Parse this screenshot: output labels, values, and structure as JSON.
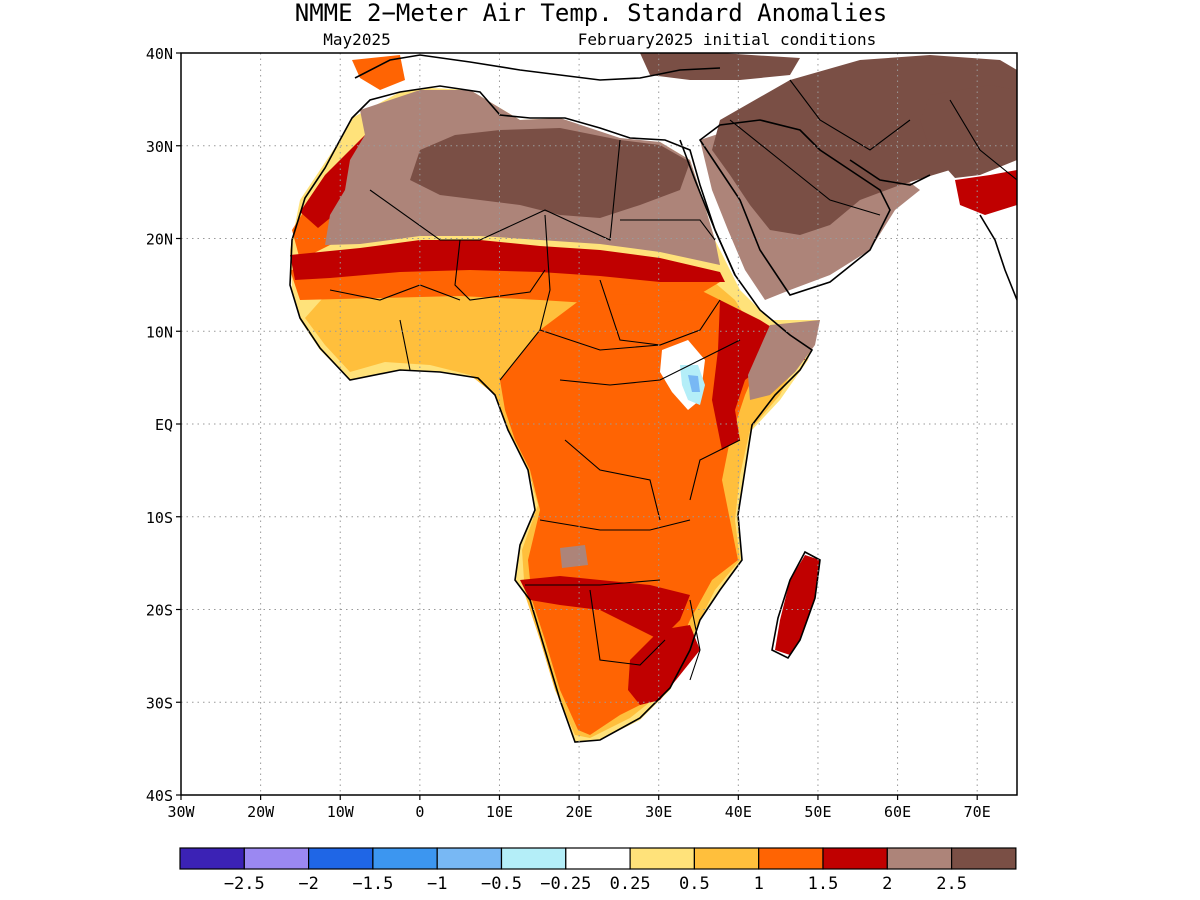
{
  "title": "NMME 2−Meter Air Temp. Standard Anomalies",
  "valid_month": "May2025",
  "initial_conditions": "February2025 initial conditions",
  "map": {
    "lon_range": [
      -30,
      75
    ],
    "lat_range": [
      -40,
      40
    ],
    "lat_labels": [
      "40N",
      "30N",
      "20N",
      "10N",
      "EQ",
      "10S",
      "20S",
      "30S",
      "40S"
    ],
    "lon_labels": [
      "30W",
      "20W",
      "10W",
      "0",
      "10E",
      "20E",
      "30E",
      "40E",
      "50E",
      "60E",
      "70E"
    ],
    "grid": "dotted"
  },
  "colorbar": {
    "colors": [
      "#3b22b5",
      "#9b88f2",
      "#1f66e6",
      "#3c96f0",
      "#78b8f4",
      "#b4eef8",
      "#ffffff",
      "#ffe27a",
      "#ffbf3c",
      "#ff6403",
      "#c00000",
      "#ad8479",
      "#7a4f45"
    ],
    "labels": [
      "−2.5",
      "−2",
      "−1.5",
      "−1",
      "−0.5",
      "−0.25",
      "0.25",
      "0.5",
      "1",
      "1.5",
      "2",
      "2.5"
    ]
  }
}
